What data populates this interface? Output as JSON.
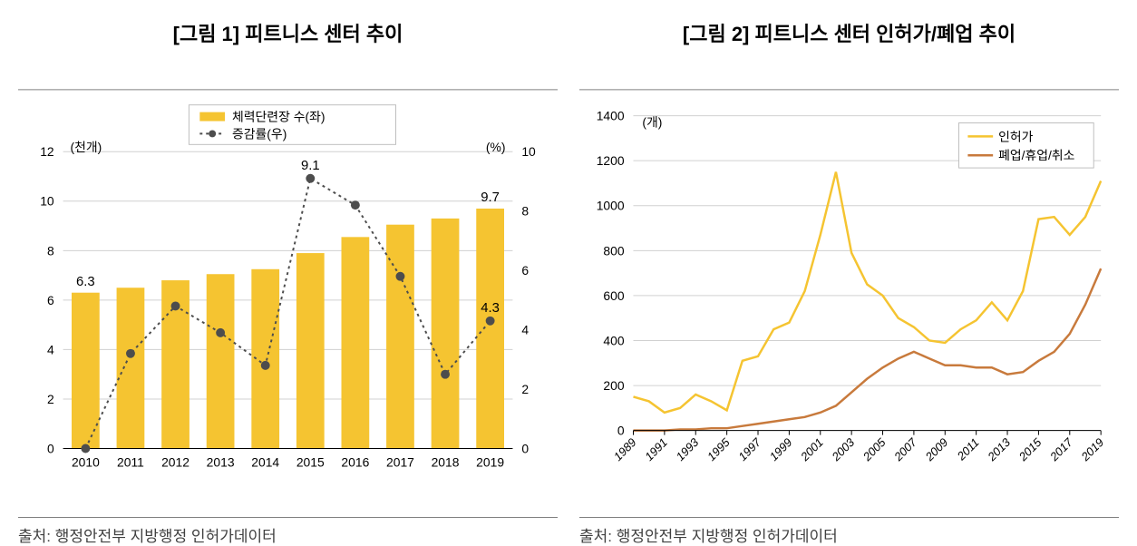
{
  "chart1": {
    "title": "[그림 1] 피트니스 센터 추이",
    "type": "bar+line",
    "left_unit_label": "(천개)",
    "right_unit_label": "(%)",
    "legend": {
      "bar_label": "체력단련장 수(좌)",
      "line_label": "증감률(우)"
    },
    "years": [
      "2010",
      "2011",
      "2012",
      "2013",
      "2014",
      "2015",
      "2016",
      "2017",
      "2018",
      "2019"
    ],
    "bar_values": [
      6.3,
      6.5,
      6.8,
      7.05,
      7.25,
      7.9,
      8.55,
      9.05,
      9.3,
      9.7
    ],
    "line_values": [
      0.0,
      3.2,
      4.8,
      3.9,
      2.8,
      9.1,
      8.2,
      5.8,
      2.5,
      4.3
    ],
    "bar_value_callouts": {
      "0": "6.3",
      "9": "9.7"
    },
    "line_value_callouts": {
      "5": "9.1",
      "9": "4.3"
    },
    "left_axis": {
      "min": 0,
      "max": 12,
      "tick_step": 2
    },
    "right_axis": {
      "min": 0,
      "max": 10,
      "tick_step": 2
    },
    "colors": {
      "bar": "#f5c431",
      "line": "#4d4d4d",
      "marker_fill": "#4d4d4d",
      "axis": "#000000",
      "grid": "#d0d0d0",
      "text": "#000000",
      "background": "#ffffff"
    },
    "styles": {
      "bar_width_ratio": 0.62,
      "line_width": 2,
      "line_dash": "3,4",
      "marker_radius": 5,
      "axis_tick_fontsize": 14,
      "callout_fontsize": 15,
      "legend_fontsize": 14,
      "unit_fontsize": 14
    },
    "source": "출처: 행정안전부 지방행정 인허가데이터"
  },
  "chart2": {
    "title": "[그림 2] 피트니스 센터 인허가/폐업 추이",
    "type": "line",
    "unit_label": "(개)",
    "legend": {
      "series_a": "인허가",
      "series_b": "폐업/휴업/취소"
    },
    "years": [
      "1989",
      "1990",
      "1991",
      "1992",
      "1993",
      "1994",
      "1995",
      "1996",
      "1997",
      "1998",
      "1999",
      "2000",
      "2001",
      "2002",
      "2003",
      "2004",
      "2005",
      "2006",
      "2007",
      "2008",
      "2009",
      "2010",
      "2011",
      "2012",
      "2013",
      "2014",
      "2015",
      "2016",
      "2017",
      "2018",
      "2019"
    ],
    "series_a_values": [
      150,
      130,
      80,
      100,
      160,
      130,
      90,
      310,
      330,
      450,
      480,
      620,
      870,
      1150,
      790,
      650,
      600,
      500,
      460,
      400,
      390,
      450,
      490,
      570,
      490,
      620,
      940,
      950,
      870,
      950,
      1110
    ],
    "series_b_values": [
      0,
      0,
      0,
      5,
      5,
      10,
      10,
      20,
      30,
      40,
      50,
      60,
      80,
      110,
      170,
      230,
      280,
      320,
      350,
      320,
      290,
      290,
      280,
      280,
      250,
      260,
      310,
      350,
      430,
      560,
      720
    ],
    "y_axis": {
      "min": 0,
      "max": 1400,
      "tick_step": 200
    },
    "x_tick_years": [
      "1989",
      "1991",
      "1993",
      "1995",
      "1997",
      "1999",
      "2001",
      "2003",
      "2005",
      "2007",
      "2009",
      "2011",
      "2013",
      "2015",
      "2017",
      "2019"
    ],
    "colors": {
      "series_a": "#f5c431",
      "series_b": "#c87a3c",
      "axis": "#000000",
      "grid": "#d0d0d0",
      "text": "#000000",
      "background": "#ffffff"
    },
    "styles": {
      "line_width": 2.5,
      "axis_tick_fontsize": 14,
      "x_tick_fontsize": 13,
      "x_tick_rotation_deg": -45,
      "legend_fontsize": 14,
      "unit_fontsize": 14
    },
    "source": "출처: 행정안전부 지방행정 인허가데이터"
  }
}
